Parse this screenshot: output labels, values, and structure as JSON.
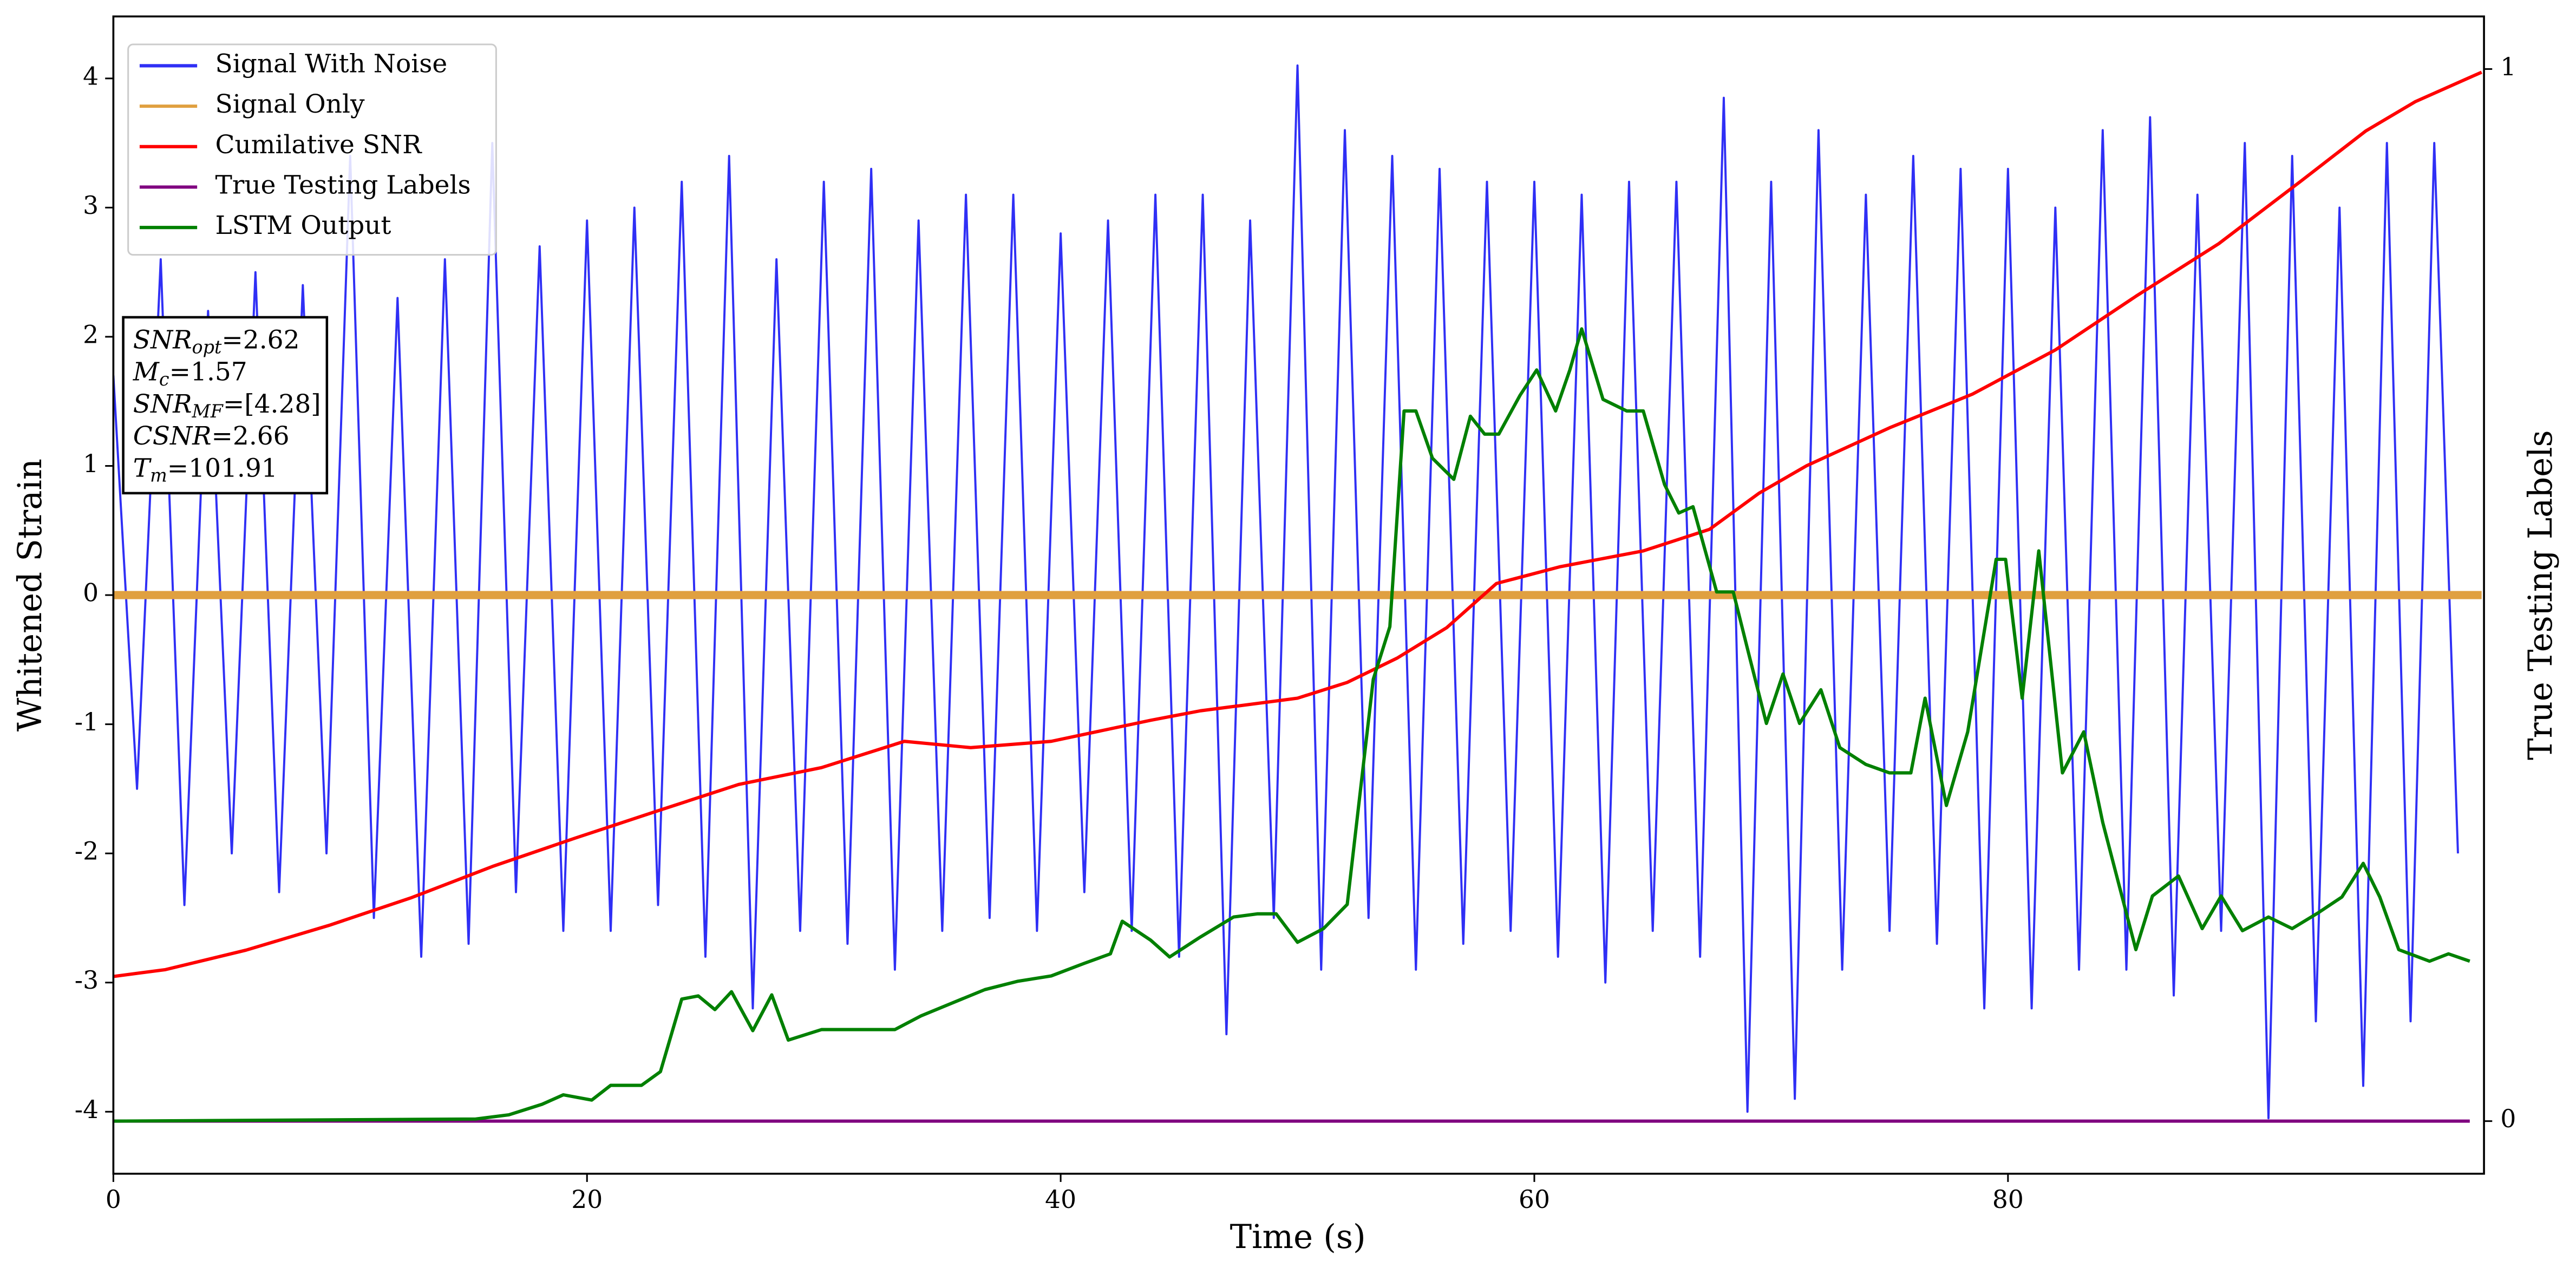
{
  "chart_data": {
    "type": "line",
    "xlabel": "Time (s)",
    "ylabel": "Whitened Strain",
    "y2label": "True Testing Labels",
    "xlim": [
      0,
      100.1
    ],
    "ylim": [
      -4.48,
      4.48
    ],
    "y2lim": [
      -0.05,
      1.05
    ],
    "xticks": [
      0,
      20,
      40,
      60,
      80
    ],
    "yticks": [
      -4,
      -3,
      -2,
      -1,
      0,
      1,
      2,
      3,
      4
    ],
    "y2ticks": [
      0,
      1
    ],
    "legend": "upper left",
    "annotation": [
      {
        "base": "SNR",
        "sub": "opt",
        "rest": "=2.62"
      },
      {
        "base": "M",
        "sub": "c",
        "rest": "=1.57"
      },
      {
        "base": "SNR",
        "sub": "MF",
        "rest": "=[4.28]"
      },
      {
        "base": "CSNR",
        "rest": "=2.66"
      },
      {
        "base": "T",
        "sub": "m",
        "rest": "=101.91"
      }
    ],
    "series": [
      {
        "name": "Signal With Noise",
        "color": "#2f2ff5",
        "width": 1.3,
        "x": [
          0,
          1,
          2,
          3,
          4,
          5,
          6,
          7,
          8,
          9,
          10,
          11,
          12,
          13,
          14,
          15,
          16,
          17,
          18,
          19,
          20,
          21,
          22,
          23,
          24,
          25,
          26,
          27,
          28,
          29,
          30,
          31,
          32,
          33,
          34,
          35,
          36,
          37,
          38,
          39,
          40,
          41,
          42,
          43,
          44,
          45,
          46,
          47,
          48,
          49,
          50,
          51,
          52,
          53,
          54,
          55,
          56,
          57,
          58,
          59,
          60,
          61,
          62,
          63,
          64,
          65,
          66,
          67,
          68,
          69,
          70,
          71,
          72,
          73,
          74,
          75,
          76,
          77,
          78,
          79,
          80,
          81,
          82,
          83,
          84,
          85,
          86,
          87,
          88,
          89,
          90,
          91,
          92,
          93,
          94,
          95,
          96,
          97,
          98,
          99
        ],
        "values": [
          1.7,
          -1.5,
          2.6,
          -2.4,
          2.2,
          -2.0,
          2.5,
          -2.3,
          2.4,
          -2.0,
          3.4,
          -2.5,
          2.3,
          -2.8,
          2.6,
          -2.7,
          3.5,
          -2.3,
          2.7,
          -2.6,
          2.9,
          -2.6,
          3.0,
          -2.4,
          3.2,
          -2.8,
          3.4,
          -3.2,
          2.6,
          -2.6,
          3.2,
          -2.7,
          3.3,
          -2.9,
          2.9,
          -2.6,
          3.1,
          -2.5,
          3.1,
          -2.6,
          2.8,
          -2.3,
          2.9,
          -2.6,
          3.1,
          -2.8,
          3.1,
          -3.4,
          2.9,
          -2.5,
          4.1,
          -2.9,
          3.6,
          -2.5,
          3.4,
          -2.9,
          3.3,
          -2.7,
          3.2,
          -2.6,
          3.2,
          -2.8,
          3.1,
          -3.0,
          3.2,
          -2.6,
          3.2,
          -2.8,
          3.85,
          -4.0,
          3.2,
          -3.9,
          3.6,
          -2.9,
          3.1,
          -2.6,
          3.4,
          -2.7,
          3.3,
          -3.2,
          3.3,
          -3.2,
          3.0,
          -2.9,
          3.6,
          -2.9,
          3.7,
          -3.1,
          3.1,
          -2.6,
          3.5,
          -4.05,
          3.4,
          -3.3,
          3.0,
          -3.8,
          3.5,
          -3.3,
          3.5,
          -2.0
        ]
      },
      {
        "name": "Signal Only",
        "color": "#e0a040",
        "width": 5,
        "x": [
          0,
          50,
          100
        ],
        "values": [
          0,
          0,
          0
        ]
      },
      {
        "name": "Cumilative SNR",
        "color": "#ff0000",
        "width": 2,
        "axis": "y2",
        "x": [
          0,
          2.2,
          5.6,
          9.1,
          12.6,
          16,
          19.5,
          23,
          26.4,
          29.9,
          33.4,
          36.2,
          39.6,
          43.8,
          45.9,
          50,
          52.1,
          54.2,
          56.3,
          58.4,
          61.1,
          64.6,
          67.4,
          69.5,
          71.5,
          75,
          78.5,
          82,
          85.4,
          88.9,
          92.4,
          95.1,
          97.2,
          100
        ],
        "values": [
          0.1375,
          0.144,
          0.1625,
          0.186,
          0.2125,
          0.242,
          0.269,
          0.295,
          0.32,
          0.336,
          0.361,
          0.355,
          0.361,
          0.381,
          0.39,
          0.402,
          0.417,
          0.44,
          0.469,
          0.511,
          0.527,
          0.542,
          0.5625,
          0.597,
          0.623,
          0.659,
          0.691,
          0.733,
          0.784,
          0.834,
          0.894,
          0.941,
          0.969,
          0.997
        ]
      },
      {
        "name": "True Testing Labels",
        "color": "#800080",
        "width": 2,
        "axis": "y2",
        "x": [
          0,
          99.5
        ],
        "values": [
          0,
          0
        ]
      },
      {
        "name": "LSTM Output",
        "color": "#008000",
        "width": 2,
        "axis": "y2",
        "x": [
          0,
          15.3,
          16.7,
          18.1,
          19,
          20.2,
          21,
          22.3,
          23.1,
          24,
          24.7,
          25.4,
          26.1,
          27,
          27.8,
          28.5,
          29.9,
          30.6,
          33,
          34.1,
          35.5,
          36.8,
          38.2,
          39.6,
          41,
          42.1,
          42.6,
          43.8,
          44.6,
          45.9,
          47.3,
          48.3,
          49.1,
          50,
          51.1,
          52.1,
          53.2,
          53.9,
          54.5,
          55,
          55.7,
          56.6,
          57.3,
          57.9,
          58.5,
          59.4,
          60.1,
          60.9,
          61.5,
          62,
          62.9,
          63.9,
          64.6,
          65.5,
          66.1,
          66.7,
          67.7,
          68.4,
          69.1,
          69.8,
          70.5,
          71.2,
          72.1,
          72.9,
          74,
          75,
          75.9,
          76.5,
          77.4,
          78.3,
          79.5,
          79.9,
          80.6,
          81.3,
          82.3,
          83.2,
          84,
          85.4,
          86.1,
          87.2,
          88.2,
          89,
          89.9,
          91,
          92,
          93.1,
          94.1,
          95,
          95.7,
          96.5,
          97.8,
          98.6,
          99.5
        ],
        "values": [
          0,
          0.002,
          0.006,
          0.016,
          0.025,
          0.02,
          0.034,
          0.034,
          0.047,
          0.116,
          0.119,
          0.106,
          0.123,
          0.086,
          0.12,
          0.077,
          0.087,
          0.087,
          0.087,
          0.1,
          0.113,
          0.125,
          0.133,
          0.138,
          0.15,
          0.159,
          0.19,
          0.172,
          0.156,
          0.175,
          0.194,
          0.197,
          0.197,
          0.17,
          0.183,
          0.206,
          0.42,
          0.47,
          0.675,
          0.675,
          0.63,
          0.61,
          0.67,
          0.653,
          0.653,
          0.69,
          0.714,
          0.675,
          0.714,
          0.753,
          0.686,
          0.675,
          0.675,
          0.605,
          0.578,
          0.584,
          0.503,
          0.503,
          0.44,
          0.378,
          0.425,
          0.378,
          0.41,
          0.355,
          0.339,
          0.331,
          0.331,
          0.402,
          0.3,
          0.37,
          0.534,
          0.534,
          0.402,
          0.542,
          0.331,
          0.37,
          0.284,
          0.163,
          0.214,
          0.233,
          0.183,
          0.214,
          0.181,
          0.194,
          0.183,
          0.198,
          0.213,
          0.245,
          0.213,
          0.163,
          0.152,
          0.159,
          0.152
        ]
      }
    ]
  }
}
